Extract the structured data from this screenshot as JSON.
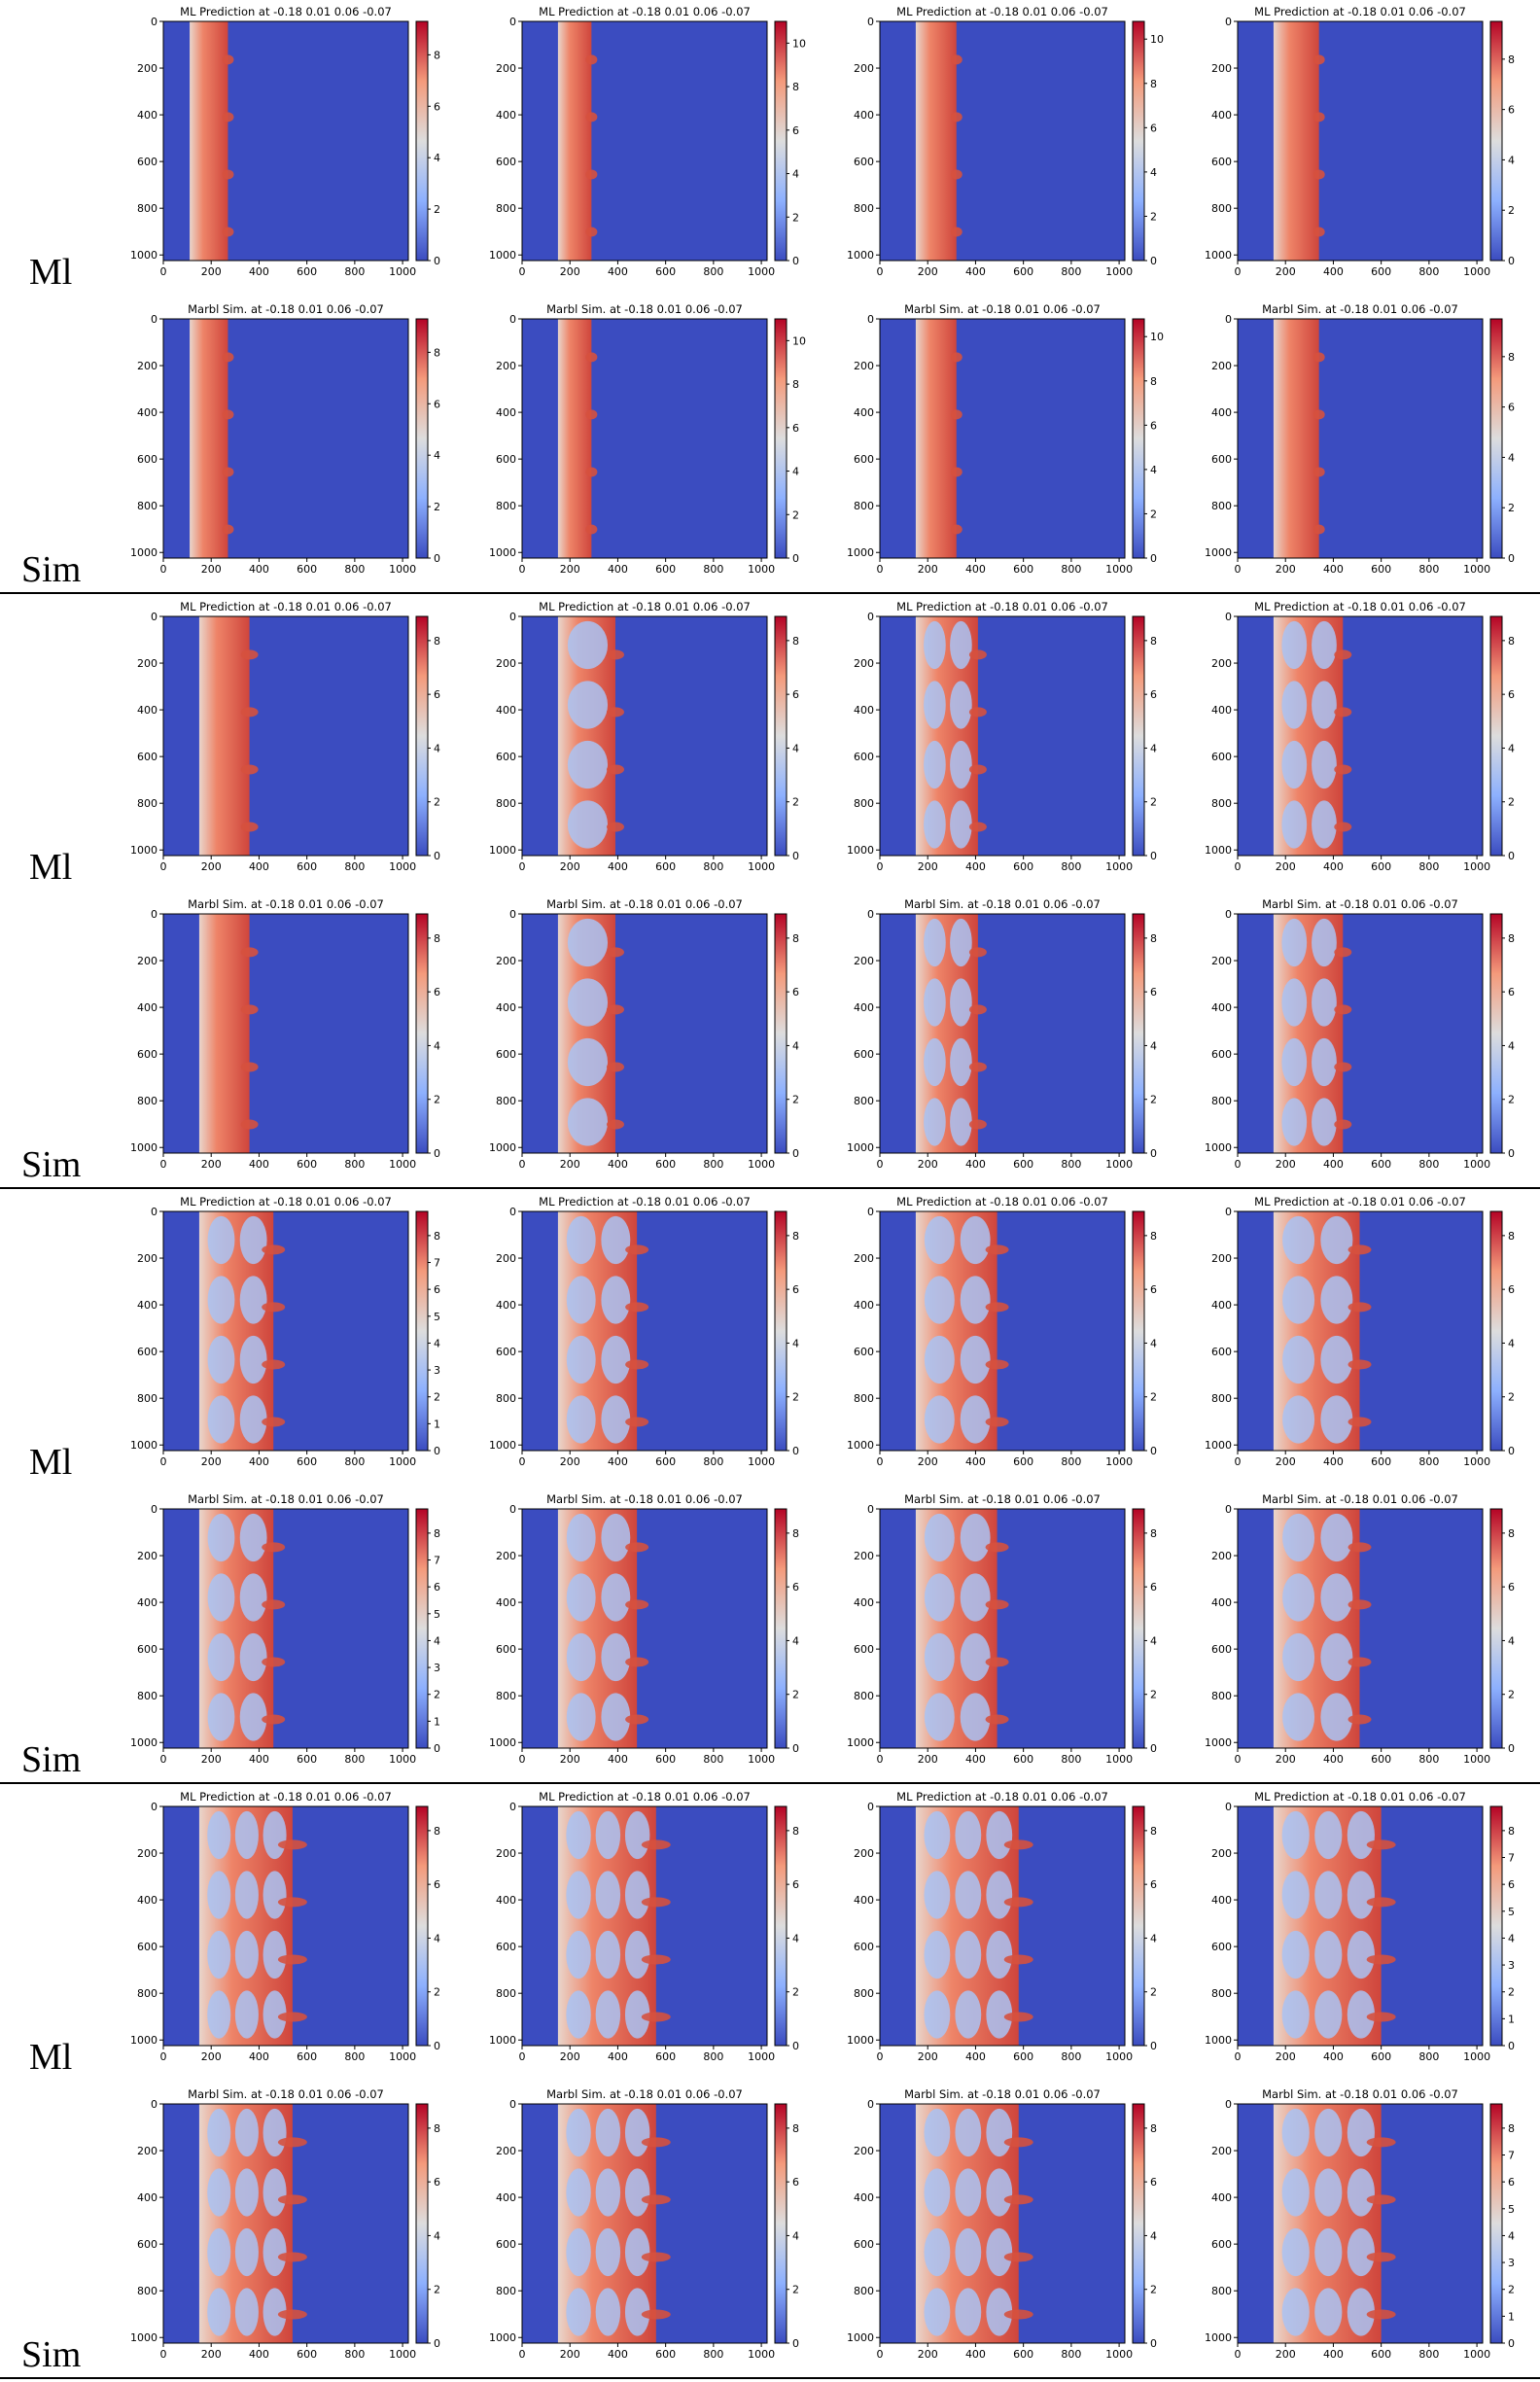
{
  "row_labels": {
    "ml": "Ml",
    "sim": "Sim"
  },
  "titles": {
    "ml": "ML Prediction at -0.18 0.01 0.06 -0.07",
    "sim": "Marbl Sim. at -0.18 0.01 0.06 -0.07"
  },
  "colormap": {
    "name": "coolwarm",
    "low": "#3b4cc0",
    "mid": "#dddddd",
    "high": "#b40426"
  },
  "chart_data": {
    "type": "heatmap",
    "layout": "4 time-step groups x 2 rows (ML, Sim) x 4 panels",
    "x_ticks": [
      0,
      200,
      400,
      600,
      800,
      1000
    ],
    "y_ticks": [
      0,
      200,
      400,
      600,
      800,
      1000
    ],
    "xlim": [
      0,
      1024
    ],
    "ylim": [
      1024,
      0
    ],
    "groups": [
      {
        "panels": [
          {
            "front_left": 110,
            "front_right": 270,
            "bubbles": 0,
            "cbar_max": 9.3,
            "cbar_ticks": [
              0,
              2,
              4,
              6,
              8
            ]
          },
          {
            "front_left": 150,
            "front_right": 290,
            "bubbles": 0,
            "cbar_max": 11,
            "cbar_ticks": [
              0,
              2,
              4,
              6,
              8,
              10
            ]
          },
          {
            "front_left": 150,
            "front_right": 320,
            "bubbles": 0,
            "cbar_max": 10.8,
            "cbar_ticks": [
              0,
              2,
              4,
              6,
              8,
              10
            ]
          },
          {
            "front_left": 150,
            "front_right": 340,
            "bubbles": 0,
            "cbar_max": 9.5,
            "cbar_ticks": [
              0,
              2,
              4,
              6,
              8
            ]
          }
        ]
      },
      {
        "panels": [
          {
            "front_left": 150,
            "front_right": 360,
            "bubbles": 0,
            "cbar_max": 8.9,
            "cbar_ticks": [
              0,
              2,
              4,
              6,
              8
            ]
          },
          {
            "front_left": 150,
            "front_right": 390,
            "bubbles": 1,
            "cbar_max": 8.9,
            "cbar_ticks": [
              0,
              2,
              4,
              6,
              8
            ]
          },
          {
            "front_left": 150,
            "front_right": 410,
            "bubbles": 2,
            "cbar_max": 8.9,
            "cbar_ticks": [
              0,
              2,
              4,
              6,
              8
            ]
          },
          {
            "front_left": 150,
            "front_right": 440,
            "bubbles": 2,
            "cbar_max": 8.9,
            "cbar_ticks": [
              0,
              2,
              4,
              6,
              8
            ]
          }
        ]
      },
      {
        "panels": [
          {
            "front_left": 150,
            "front_right": 460,
            "bubbles": 2,
            "cbar_max": 8.9,
            "cbar_ticks": [
              0,
              1,
              2,
              3,
              4,
              5,
              6,
              7,
              8
            ]
          },
          {
            "front_left": 150,
            "front_right": 480,
            "bubbles": 2,
            "cbar_max": 8.9,
            "cbar_ticks": [
              0,
              2,
              4,
              6,
              8
            ]
          },
          {
            "front_left": 150,
            "front_right": 490,
            "bubbles": 2,
            "cbar_max": 8.9,
            "cbar_ticks": [
              0,
              2,
              4,
              6,
              8
            ]
          },
          {
            "front_left": 150,
            "front_right": 510,
            "bubbles": 2,
            "cbar_max": 8.9,
            "cbar_ticks": [
              0,
              2,
              4,
              6,
              8
            ]
          }
        ]
      },
      {
        "panels": [
          {
            "front_left": 150,
            "front_right": 540,
            "bubbles": 3,
            "cbar_max": 8.9,
            "cbar_ticks": [
              0,
              2,
              4,
              6,
              8
            ]
          },
          {
            "front_left": 150,
            "front_right": 560,
            "bubbles": 3,
            "cbar_max": 8.9,
            "cbar_ticks": [
              0,
              2,
              4,
              6,
              8
            ]
          },
          {
            "front_left": 150,
            "front_right": 580,
            "bubbles": 3,
            "cbar_max": 8.9,
            "cbar_ticks": [
              0,
              2,
              4,
              6,
              8
            ]
          },
          {
            "front_left": 150,
            "front_right": 600,
            "bubbles": 3,
            "cbar_max": 8.9,
            "cbar_ticks": [
              0,
              1,
              2,
              3,
              4,
              5,
              6,
              7,
              8
            ]
          }
        ]
      }
    ]
  }
}
